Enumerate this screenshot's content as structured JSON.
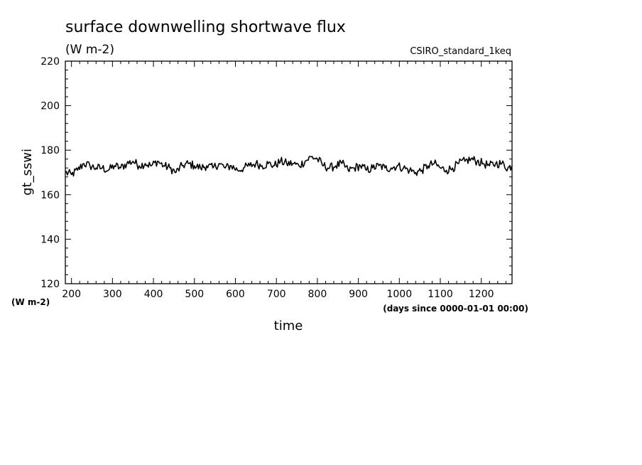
{
  "chart_data": {
    "type": "line",
    "title": "surface downwelling shortwave flux",
    "subtitle": "(W m-2)",
    "dataset_label": "CSIRO_standard_1keq",
    "xlabel": "time",
    "x_units": "(days since 0000-01-01 00:00)",
    "ylabel": "gt_sswi",
    "y_units": "(W m-2)",
    "xlim": [
      185,
      1275
    ],
    "ylim": [
      120,
      220
    ],
    "x_ticks": [
      200,
      300,
      400,
      500,
      600,
      700,
      800,
      900,
      1000,
      1100,
      1200
    ],
    "x_tick_labels": [
      "200",
      "300",
      "400",
      "500",
      "600",
      "700",
      "800",
      "900",
      "1000",
      "1100",
      "1200"
    ],
    "y_ticks": [
      120,
      140,
      160,
      180,
      200,
      220
    ],
    "y_tick_labels": [
      "120",
      "140",
      "160",
      "180",
      "200",
      "220"
    ],
    "grid": false,
    "series": [
      {
        "color": "#000000",
        "x": [
          185,
          200,
          215,
          230,
          245,
          260,
          275,
          290,
          305,
          320,
          335,
          350,
          365,
          380,
          395,
          410,
          425,
          440,
          455,
          470,
          485,
          500,
          515,
          530,
          545,
          560,
          575,
          590,
          605,
          620,
          635,
          650,
          665,
          680,
          695,
          710,
          725,
          740,
          755,
          770,
          785,
          800,
          815,
          830,
          845,
          860,
          875,
          890,
          905,
          920,
          935,
          950,
          965,
          980,
          995,
          1010,
          1025,
          1040,
          1055,
          1070,
          1085,
          1100,
          1115,
          1130,
          1145,
          1160,
          1175,
          1190,
          1205,
          1220,
          1235,
          1250,
          1265,
          1275
        ],
        "y": [
          170,
          169,
          171,
          174,
          173,
          172,
          172,
          171,
          173,
          172,
          174,
          175,
          173,
          174,
          173,
          175,
          173,
          172,
          170,
          173,
          174,
          173,
          172,
          173,
          172,
          174,
          172,
          173,
          171,
          172,
          173,
          174,
          173,
          174,
          173,
          175,
          174,
          174,
          173,
          175,
          177,
          176,
          173,
          172,
          173,
          174,
          171,
          172,
          173,
          171,
          172,
          173,
          172,
          172,
          173,
          172,
          171,
          170,
          171,
          173,
          174,
          172,
          171,
          172,
          174,
          175,
          176,
          175,
          174,
          173,
          174,
          174,
          172,
          173
        ]
      }
    ]
  }
}
